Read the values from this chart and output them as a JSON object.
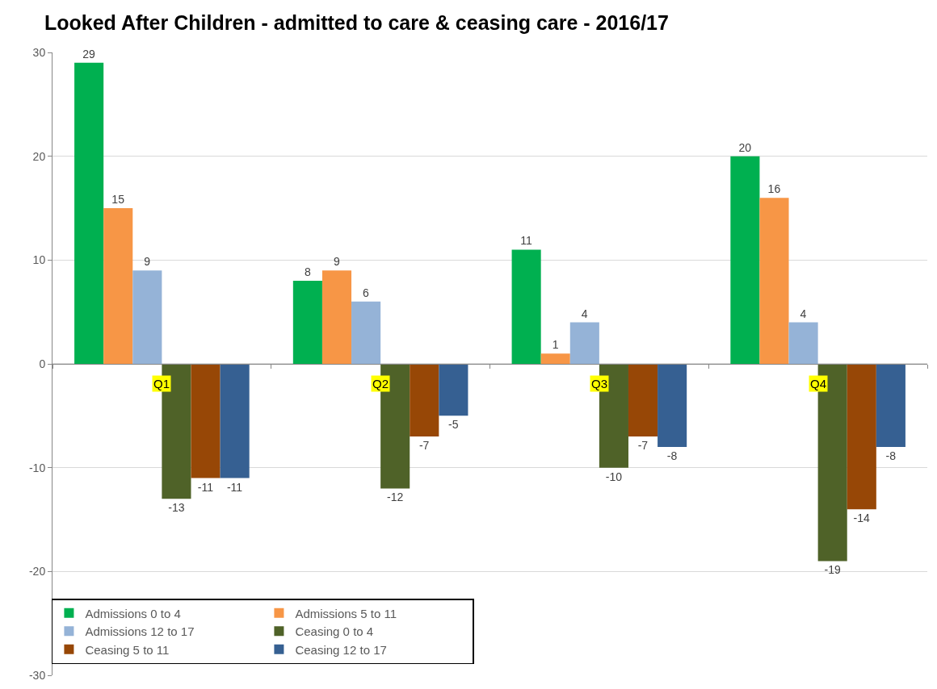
{
  "chart_data": {
    "type": "bar",
    "title": "Looked After Children - admitted to care & ceasing care - 2016/17",
    "categories": [
      "Q1",
      "Q2",
      "Q3",
      "Q4"
    ],
    "series": [
      {
        "name": "Admissions 0 to 4",
        "color": "#00b050",
        "values": [
          29,
          8,
          11,
          20
        ]
      },
      {
        "name": "Admissions 5 to 11",
        "color": "#f79646",
        "values": [
          15,
          9,
          1,
          16
        ]
      },
      {
        "name": "Admissions 12 to 17",
        "color": "#95b3d7",
        "values": [
          9,
          6,
          4,
          4
        ]
      },
      {
        "name": "Ceasing 0 to 4",
        "color": "#4f6228",
        "values": [
          -13,
          -12,
          -10,
          -19
        ]
      },
      {
        "name": "Ceasing 5 to 11",
        "color": "#974706",
        "values": [
          -11,
          -7,
          -7,
          -14
        ]
      },
      {
        "name": "Ceasing 12 to 17",
        "color": "#366092",
        "values": [
          -11,
          -5,
          -8,
          -8
        ]
      }
    ],
    "ylim": [
      -30,
      30
    ],
    "yticks": [
      -30,
      -20,
      -10,
      0,
      10,
      20,
      30
    ],
    "grid": "y",
    "legend": "bottom left",
    "data_labels": true
  }
}
